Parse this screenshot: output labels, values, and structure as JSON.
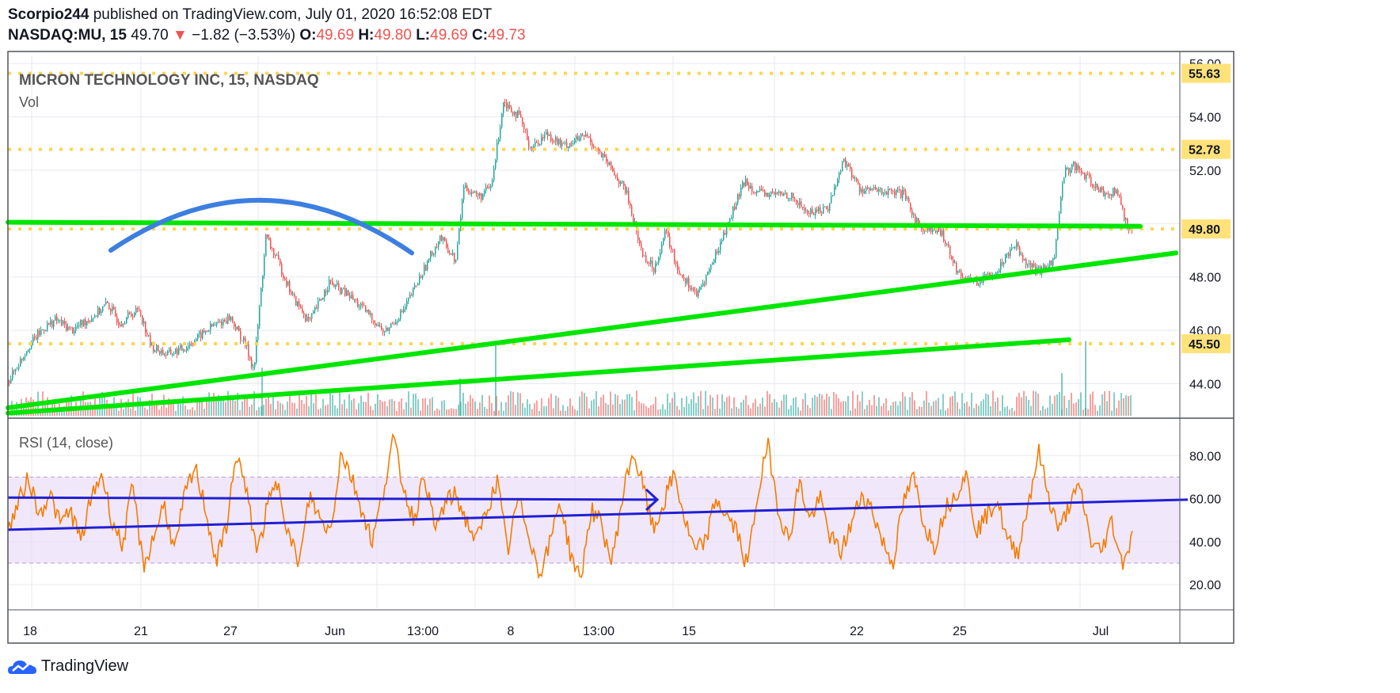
{
  "header": {
    "author": "Scorpio244",
    "published_text": "published on TradingView.com, July 01, 2020 16:52:08 EDT",
    "symbol": "NASDAQ:MU, 15",
    "last_price": "49.70",
    "change_arrow": "▼",
    "change_text": "−1.82 (−3.53%)",
    "o_label": "O:",
    "o_value": "49.69",
    "h_label": "H:",
    "h_value": "49.80",
    "l_label": "L:",
    "l_value": "49.69",
    "c_label": "C:",
    "c_value": "49.73"
  },
  "colors": {
    "up": "#26a69a",
    "down": "#ef5350",
    "trendline": "#00e600",
    "level_line": "#ffd54f",
    "level_label_bg": "#ffe27a",
    "arc": "#3d7fe0",
    "rsi_line": "#f57c00",
    "rsi_band": "#e8d7f7",
    "rsi_trend": "#1f1fd6",
    "grid": "#e6e9ef"
  },
  "footer": {
    "brand": "TradingView",
    "logo_icon": "tradingview-cloud-icon"
  },
  "chart_data": [
    {
      "type": "candlestick",
      "title": "MICRON TECHNOLOGY INC, 15, NASDAQ",
      "volume_label": "Vol",
      "ylim": [
        42.8,
        56.3
      ],
      "y_ticks": [
        44,
        46,
        48,
        50,
        52,
        54,
        56
      ],
      "y_tick_labels": [
        "44.00",
        "46.00",
        "48.00",
        "50.00",
        "52.00",
        "54.00",
        "56.00"
      ],
      "x_tick_labels": [
        "18",
        "21",
        "27",
        "Jun",
        "13:00",
        "8",
        "13:00",
        "15",
        "22",
        "25",
        "Jul"
      ],
      "price_path": [
        [
          0,
          44.1
        ],
        [
          10,
          44.6
        ],
        [
          25,
          45.4
        ],
        [
          45,
          46.1
        ],
        [
          60,
          46.4
        ],
        [
          80,
          46.0
        ],
        [
          110,
          46.6
        ],
        [
          125,
          47.0
        ],
        [
          140,
          46.3
        ],
        [
          165,
          46.8
        ],
        [
          180,
          45.4
        ],
        [
          200,
          45.1
        ],
        [
          220,
          45.3
        ],
        [
          255,
          46.1
        ],
        [
          280,
          46.5
        ],
        [
          300,
          45.4
        ],
        [
          310,
          44.5
        ],
        [
          325,
          49.5
        ],
        [
          340,
          48.6
        ],
        [
          360,
          47.2
        ],
        [
          380,
          46.3
        ],
        [
          405,
          47.8
        ],
        [
          430,
          47.3
        ],
        [
          455,
          46.6
        ],
        [
          475,
          45.9
        ],
        [
          500,
          46.8
        ],
        [
          520,
          48.0
        ],
        [
          545,
          49.5
        ],
        [
          565,
          48.6
        ],
        [
          575,
          51.4
        ],
        [
          595,
          51.0
        ],
        [
          610,
          51.4
        ],
        [
          625,
          54.6
        ],
        [
          645,
          54.0
        ],
        [
          660,
          52.8
        ],
        [
          680,
          53.4
        ],
        [
          700,
          52.9
        ],
        [
          730,
          53.3
        ],
        [
          760,
          52.1
        ],
        [
          780,
          51.2
        ],
        [
          800,
          48.9
        ],
        [
          815,
          48.3
        ],
        [
          830,
          49.7
        ],
        [
          845,
          48.3
        ],
        [
          870,
          47.3
        ],
        [
          890,
          48.6
        ],
        [
          915,
          50.5
        ],
        [
          930,
          51.6
        ],
        [
          950,
          51.1
        ],
        [
          985,
          51.1
        ],
        [
          1010,
          50.4
        ],
        [
          1035,
          50.6
        ],
        [
          1055,
          52.4
        ],
        [
          1075,
          51.3
        ],
        [
          1100,
          51.2
        ],
        [
          1130,
          51.1
        ],
        [
          1150,
          49.9
        ],
        [
          1180,
          49.6
        ],
        [
          1200,
          48.1
        ],
        [
          1225,
          47.8
        ],
        [
          1250,
          48.3
        ],
        [
          1270,
          49.3
        ],
        [
          1285,
          48.6
        ],
        [
          1300,
          48.2
        ],
        [
          1320,
          48.6
        ],
        [
          1333,
          51.9
        ],
        [
          1345,
          52.2
        ],
        [
          1365,
          51.6
        ],
        [
          1385,
          51.1
        ],
        [
          1400,
          51.2
        ],
        [
          1413,
          49.9
        ],
        [
          1420,
          49.73
        ]
      ],
      "volume_spikes": [
        [
          320,
          44.6
        ],
        [
          570,
          44.2
        ],
        [
          615,
          45.5
        ],
        [
          1330,
          44.4
        ],
        [
          1360,
          45.6
        ]
      ],
      "horizontal_levels": [
        {
          "value": 55.63,
          "label": "55.63"
        },
        {
          "value": 52.78,
          "label": "52.78"
        },
        {
          "value": 49.8,
          "label": "49.80"
        },
        {
          "value": 45.5,
          "label": "45.50"
        }
      ],
      "trendlines": [
        {
          "start": [
            0,
            50.05
          ],
          "end": [
            1430,
            49.9
          ]
        },
        {
          "start": [
            0,
            43.1
          ],
          "end": [
            1475,
            48.9
          ]
        },
        {
          "start": [
            0,
            42.9
          ],
          "end": [
            1340,
            45.65
          ]
        }
      ],
      "arc": {
        "start": [
          130,
          49.0
        ],
        "peak": [
          320,
          50.9
        ],
        "end": [
          510,
          48.9
        ]
      }
    },
    {
      "type": "line",
      "title": "RSI (14, close)",
      "ylim": [
        9,
        93
      ],
      "y_ticks": [
        20,
        40,
        60,
        80
      ],
      "y_tick_labels": [
        "20.00",
        "40.00",
        "60.00",
        "80.00"
      ],
      "band": [
        30,
        70
      ],
      "series": [
        {
          "name": "RSI (14, close)",
          "values": [
            45,
            58,
            70,
            52,
            63,
            48,
            55,
            40,
            60,
            72,
            50,
            38,
            66,
            28,
            42,
            58,
            35,
            62,
            74,
            55,
            30,
            48,
            82,
            60,
            35,
            58,
            68,
            42,
            30,
            62,
            50,
            45,
            82,
            70,
            55,
            40,
            62,
            88,
            65,
            50,
            72,
            45,
            58,
            62,
            50,
            40,
            55,
            68,
            35,
            60,
            45,
            25,
            38,
            60,
            35,
            22,
            55,
            48,
            30,
            60,
            82,
            66,
            45,
            58,
            72,
            50,
            35,
            40,
            60,
            52,
            45,
            28,
            62,
            85,
            55,
            40,
            68,
            50,
            60,
            42,
            35,
            48,
            62,
            55,
            40,
            30,
            58,
            70,
            48,
            38,
            55,
            62,
            72,
            45,
            52,
            60,
            40,
            35,
            58,
            82,
            60,
            45,
            58,
            65,
            40,
            35,
            50,
            30,
            42
          ]
        }
      ],
      "trendlines": [
        {
          "start": [
            0,
            60.5
          ],
          "end": [
            820,
            59.5
          ],
          "arrow": true
        },
        {
          "start": [
            0,
            45.5
          ],
          "end": [
            1490,
            59.5
          ]
        }
      ]
    }
  ]
}
